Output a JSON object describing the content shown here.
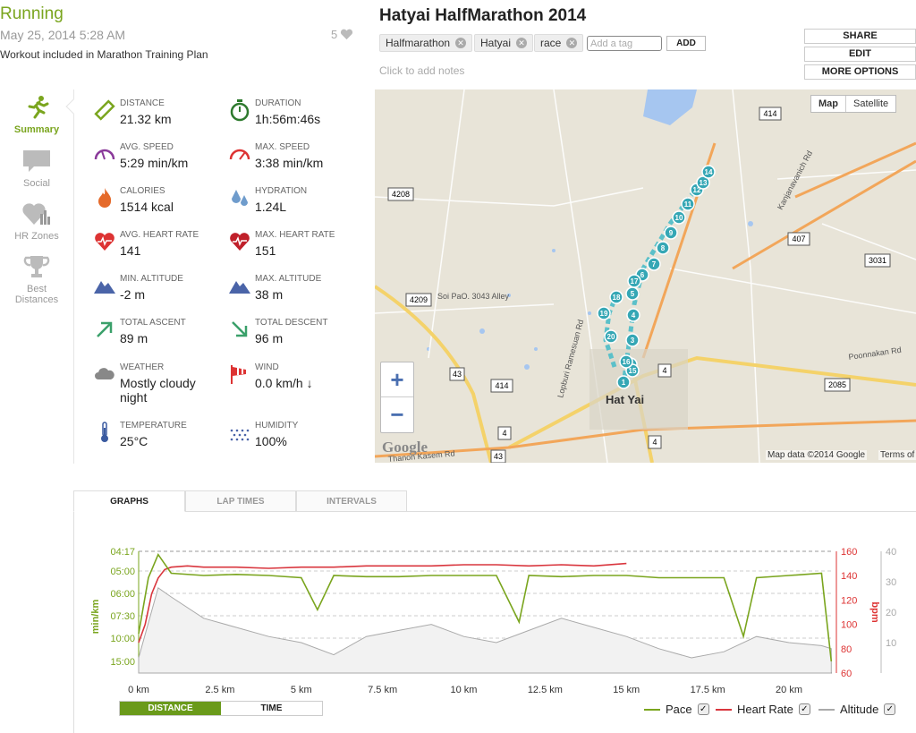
{
  "header": {
    "activity_type": "Running",
    "date": "May 25, 2014 5:28 AM",
    "plan": "Workout included in Marathon Training Plan",
    "likes": "5"
  },
  "workout": {
    "title": "Hatyai HalfMarathon 2014",
    "tags": [
      "Halfmarathon",
      "Hatyai",
      "race"
    ],
    "tag_placeholder": "Add a tag",
    "add_label": "ADD",
    "notes_placeholder": "Click to add notes"
  },
  "actions": {
    "share": "SHARE",
    "edit": "EDIT",
    "more": "MORE OPTIONS"
  },
  "nav": {
    "summary": "Summary",
    "social": "Social",
    "hr_zones": "HR Zones",
    "best_1": "Best",
    "best_2": "Distances"
  },
  "stats": {
    "distance": {
      "label": "DISTANCE",
      "value": "21.32 km"
    },
    "duration": {
      "label": "DURATION",
      "value": "1h:56m:46s"
    },
    "avg_speed": {
      "label": "AVG. SPEED",
      "value": "5:29 min/km"
    },
    "max_speed": {
      "label": "MAX. SPEED",
      "value": "3:38 min/km"
    },
    "calories": {
      "label": "CALORIES",
      "value": "1514 kcal"
    },
    "hydration": {
      "label": "HYDRATION",
      "value": "1.24L"
    },
    "avg_hr": {
      "label": "AVG. HEART RATE",
      "value": "141"
    },
    "max_hr": {
      "label": "MAX. HEART RATE",
      "value": "151"
    },
    "min_alt": {
      "label": "MIN. ALTITUDE",
      "value": "-2 m"
    },
    "max_alt": {
      "label": "MAX. ALTITUDE",
      "value": "38 m"
    },
    "ascent": {
      "label": "TOTAL ASCENT",
      "value": "89 m"
    },
    "descent": {
      "label": "TOTAL DESCENT",
      "value": "96 m"
    },
    "weather": {
      "label": "WEATHER",
      "value_1": "Mostly cloudy",
      "value_2": "night"
    },
    "wind": {
      "label": "WIND",
      "value": "0.0 km/h ↓"
    },
    "temperature": {
      "label": "TEMPERATURE",
      "value": "25°C"
    },
    "humidity": {
      "label": "HUMIDITY",
      "value": "100%"
    }
  },
  "map": {
    "btn_map": "Map",
    "btn_satellite": "Satellite",
    "zoom_in": "+",
    "zoom_out": "−",
    "credit": "Map data ©2014 Google",
    "terms": "Terms of",
    "logo": "Google",
    "city": "Hat Yai",
    "road_labels": [
      "414",
      "4208",
      "4209",
      "407",
      "3031",
      "43",
      "414",
      "4",
      "4",
      "2085",
      "43",
      "4"
    ],
    "street_labels": [
      "Kanjanavanich Rd",
      "Lopburi Ramesuan Rd",
      "Poonnakan Rd",
      "Thanon Kasem Rd",
      "Soi PaO. 3043 Alley"
    ],
    "markers": [
      "1",
      "2",
      "3",
      "4",
      "5",
      "6",
      "7",
      "8",
      "9",
      "10",
      "11",
      "12",
      "13",
      "14",
      "15",
      "16",
      "17",
      "18",
      "19",
      "20"
    ],
    "route_color": "#5bc0c9"
  },
  "tabs": {
    "graphs": "GRAPHS",
    "laps": "LAP TIMES",
    "intervals": "INTERVALS"
  },
  "mode": {
    "distance": "DISTANCE",
    "time": "TIME"
  },
  "legend": {
    "pace": "Pace",
    "hr": "Heart Rate",
    "alt": "Altitude",
    "check": "✓"
  },
  "chart_data": {
    "type": "line",
    "xlabel": "",
    "x_ticks": [
      "0 km",
      "2.5 km",
      "5 km",
      "7.5 km",
      "10 km",
      "12.5 km",
      "15 km",
      "17.5 km",
      "20 km"
    ],
    "xlim": [
      0,
      21.32
    ],
    "y_left": {
      "label": "min/km",
      "ticks": [
        "04:17",
        "05:00",
        "06:00",
        "07:30",
        "10:00",
        "15:00"
      ]
    },
    "y_right": {
      "label": "bpm",
      "ticks": [
        "160",
        "140",
        "120",
        "100",
        "80",
        "60"
      ],
      "lim": [
        60,
        160
      ]
    },
    "y_alt": {
      "ticks": [
        "40",
        "30",
        "20",
        "10"
      ],
      "lim": [
        0,
        40
      ]
    },
    "colors": {
      "pace": "#7aa51e",
      "hr": "#d9363e",
      "alt": "#aaaaaa"
    },
    "series": [
      {
        "name": "Heart Rate",
        "x": [
          0,
          0.2,
          0.4,
          0.6,
          0.8,
          1.0,
          1.5,
          2.0,
          3.0,
          4.0,
          5.0,
          6.0,
          7.0,
          8.0,
          9.0,
          10.0,
          11.0,
          12.0,
          13.0,
          14.0,
          15.0
        ],
        "values": [
          85,
          100,
          125,
          138,
          145,
          147,
          148,
          147,
          147,
          146,
          147,
          147,
          148,
          148,
          148,
          149,
          149,
          148,
          149,
          148,
          150
        ]
      },
      {
        "name": "Pace",
        "x": [
          0,
          0.3,
          0.6,
          1,
          2,
          3,
          4,
          5,
          5.5,
          6,
          7,
          8,
          9,
          10,
          11,
          11.7,
          12,
          13,
          14,
          15,
          16,
          17,
          18,
          18.6,
          19,
          20,
          21,
          21.3
        ],
        "values": [
          9.5,
          5.3,
          4.4,
          5.1,
          5.2,
          5.15,
          5.2,
          5.3,
          7.1,
          5.2,
          5.25,
          5.25,
          5.2,
          5.2,
          5.2,
          8.2,
          5.2,
          5.25,
          5.2,
          5.2,
          5.3,
          5.3,
          5.3,
          9.8,
          5.3,
          5.2,
          5.1,
          15
        ]
      },
      {
        "name": "Altitude",
        "x": [
          0,
          0.6,
          1,
          2,
          3,
          4,
          5,
          6,
          7,
          8,
          9,
          10,
          11,
          12,
          13,
          14,
          15,
          16,
          17,
          18,
          19,
          20,
          21,
          21.3
        ],
        "values": [
          5,
          28,
          25,
          18,
          15,
          12,
          10,
          6,
          12,
          14,
          16,
          12,
          10,
          14,
          18,
          15,
          12,
          8,
          5,
          7,
          12,
          10,
          9,
          8
        ]
      }
    ]
  }
}
